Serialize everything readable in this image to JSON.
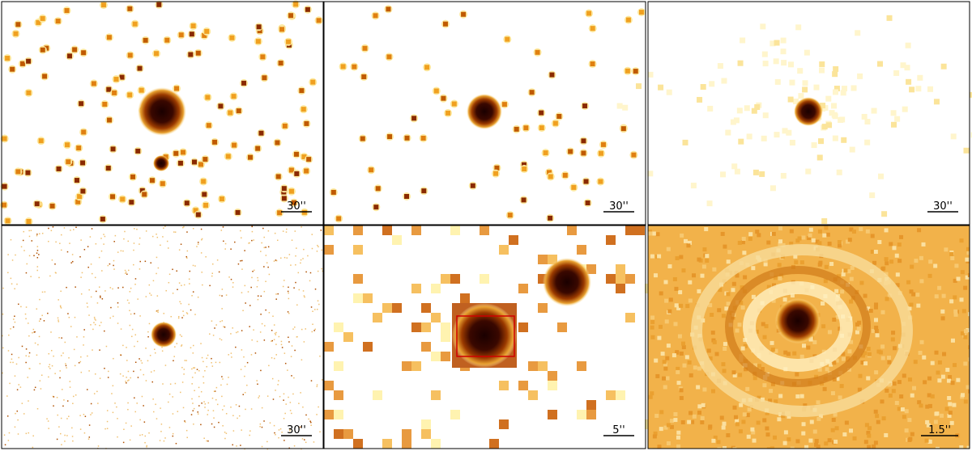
{
  "panels": [
    {
      "scale_label": "30''"
    },
    {
      "scale_label": "30''"
    },
    {
      "scale_label": "30''"
    },
    {
      "scale_label": "30''"
    },
    {
      "scale_label": "5''"
    },
    {
      "scale_label": "1.5''"
    }
  ]
}
